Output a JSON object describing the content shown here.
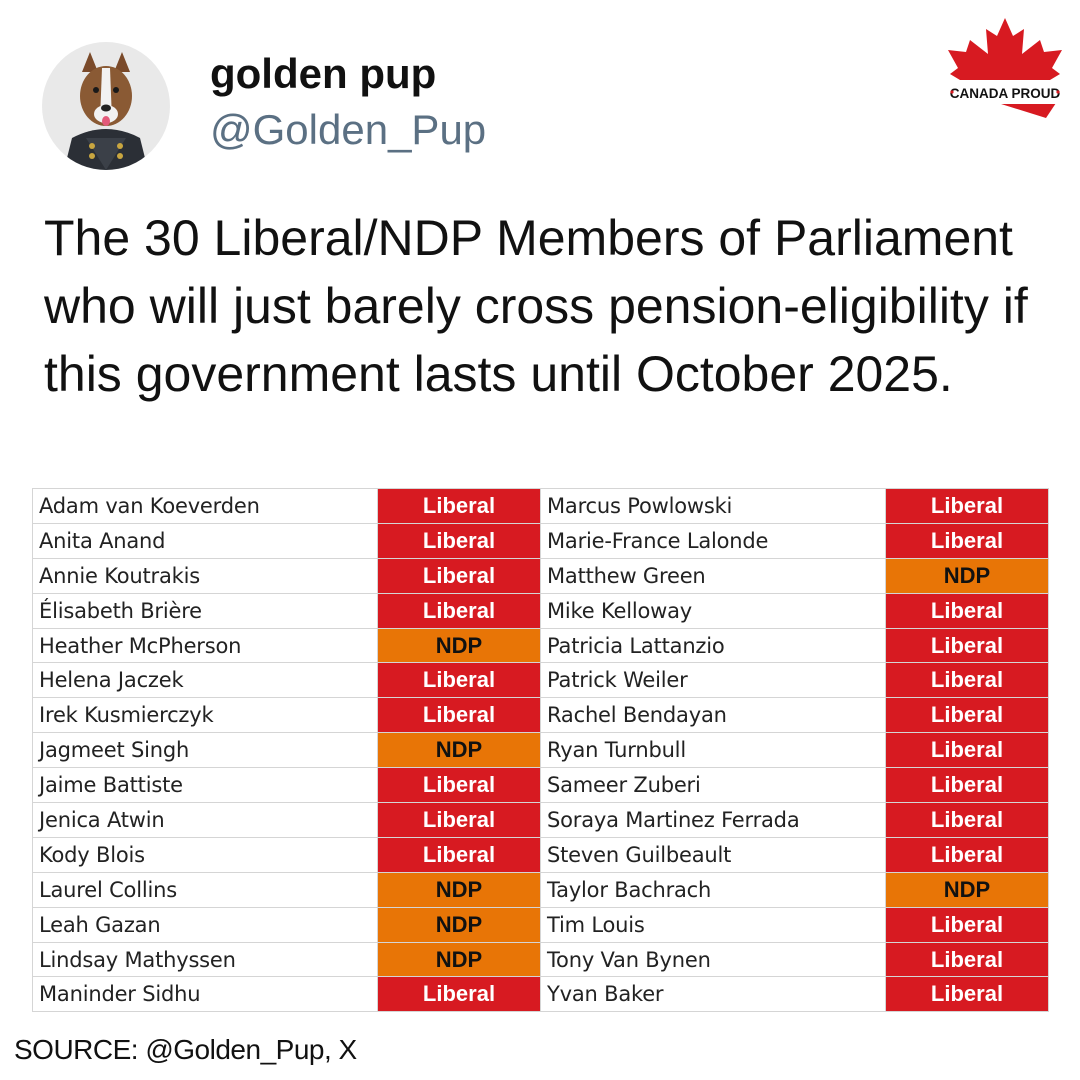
{
  "header": {
    "display_name": "golden pup",
    "handle": "@Golden_Pup"
  },
  "brand": {
    "logo_text": "CANADA PROUD",
    "icon": "maple-leaf-icon"
  },
  "tweet": {
    "text": "The 30 Liberal/NDP Members of Parliament who will just barely cross pension-eligibility if this government lasts until October 2025."
  },
  "colors": {
    "liberal": "#d71a21",
    "ndp": "#e87506",
    "handle": "#5b7083"
  },
  "table": {
    "rows": [
      {
        "left_name": "Adam van Koeverden",
        "left_party": "Liberal",
        "right_name": "Marcus Powlowski",
        "right_party": "Liberal"
      },
      {
        "left_name": "Anita Anand",
        "left_party": "Liberal",
        "right_name": "Marie-France Lalonde",
        "right_party": "Liberal"
      },
      {
        "left_name": "Annie Koutrakis",
        "left_party": "Liberal",
        "right_name": "Matthew Green",
        "right_party": "NDP"
      },
      {
        "left_name": "Élisabeth Brière",
        "left_party": "Liberal",
        "right_name": "Mike Kelloway",
        "right_party": "Liberal"
      },
      {
        "left_name": "Heather McPherson",
        "left_party": "NDP",
        "right_name": "Patricia Lattanzio",
        "right_party": "Liberal"
      },
      {
        "left_name": "Helena Jaczek",
        "left_party": "Liberal",
        "right_name": "Patrick Weiler",
        "right_party": "Liberal"
      },
      {
        "left_name": "Irek Kusmierczyk",
        "left_party": "Liberal",
        "right_name": "Rachel Bendayan",
        "right_party": "Liberal"
      },
      {
        "left_name": "Jagmeet Singh",
        "left_party": "NDP",
        "right_name": "Ryan Turnbull",
        "right_party": "Liberal"
      },
      {
        "left_name": "Jaime Battiste",
        "left_party": "Liberal",
        "right_name": "Sameer Zuberi",
        "right_party": "Liberal"
      },
      {
        "left_name": "Jenica Atwin",
        "left_party": "Liberal",
        "right_name": "Soraya Martinez Ferrada",
        "right_party": "Liberal"
      },
      {
        "left_name": "Kody Blois",
        "left_party": "Liberal",
        "right_name": "Steven Guilbeault",
        "right_party": "Liberal"
      },
      {
        "left_name": "Laurel Collins",
        "left_party": "NDP",
        "right_name": "Taylor Bachrach",
        "right_party": "NDP"
      },
      {
        "left_name": "Leah Gazan",
        "left_party": "NDP",
        "right_name": "Tim Louis",
        "right_party": "Liberal"
      },
      {
        "left_name": "Lindsay Mathyssen",
        "left_party": "NDP",
        "right_name": "Tony Van Bynen",
        "right_party": "Liberal"
      },
      {
        "left_name": "Maninder Sidhu",
        "left_party": "Liberal",
        "right_name": "Yvan Baker",
        "right_party": "Liberal"
      }
    ]
  },
  "footer": {
    "source": "SOURCE: @Golden_Pup, X"
  }
}
